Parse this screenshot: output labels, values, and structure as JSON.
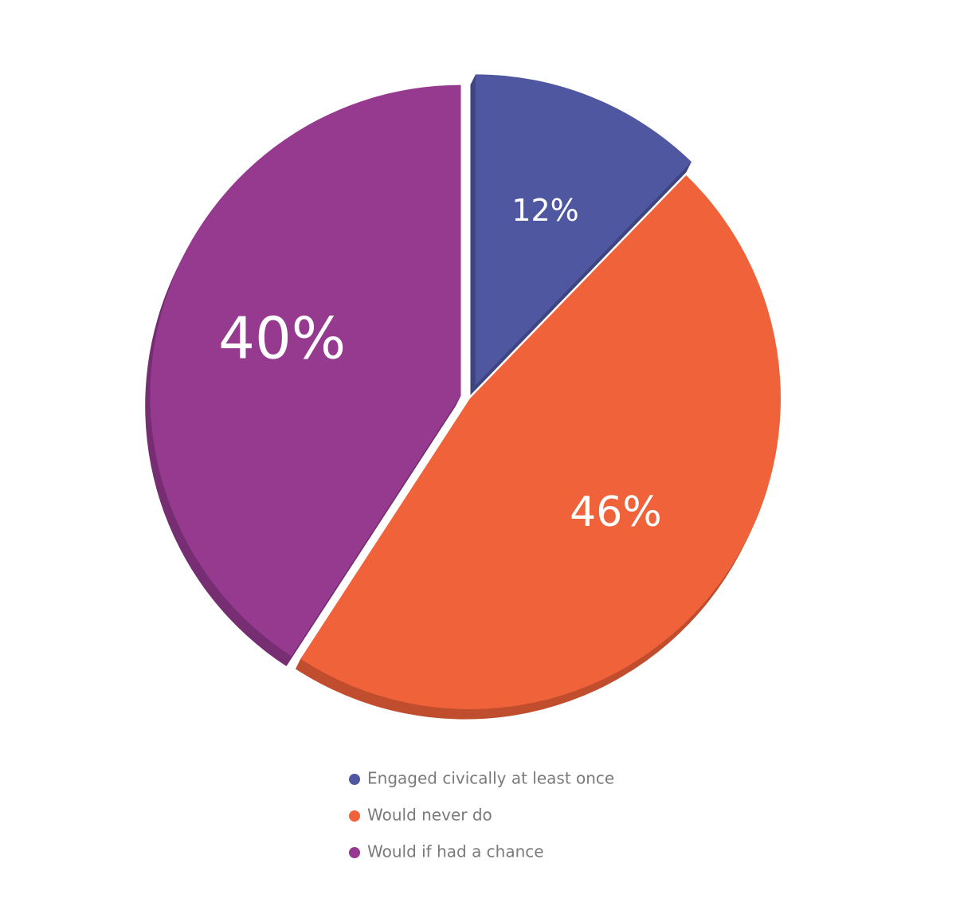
{
  "chart_data": {
    "type": "pie",
    "categories": [
      "Engaged civically at least once",
      "Would never do",
      "Would if had a chance"
    ],
    "values": [
      12,
      46,
      40
    ],
    "value_labels": [
      "12%",
      "46%",
      "40%"
    ],
    "colors": [
      "#4f57a1",
      "#f0623a",
      "#953a8e"
    ],
    "legend": "bottom"
  }
}
